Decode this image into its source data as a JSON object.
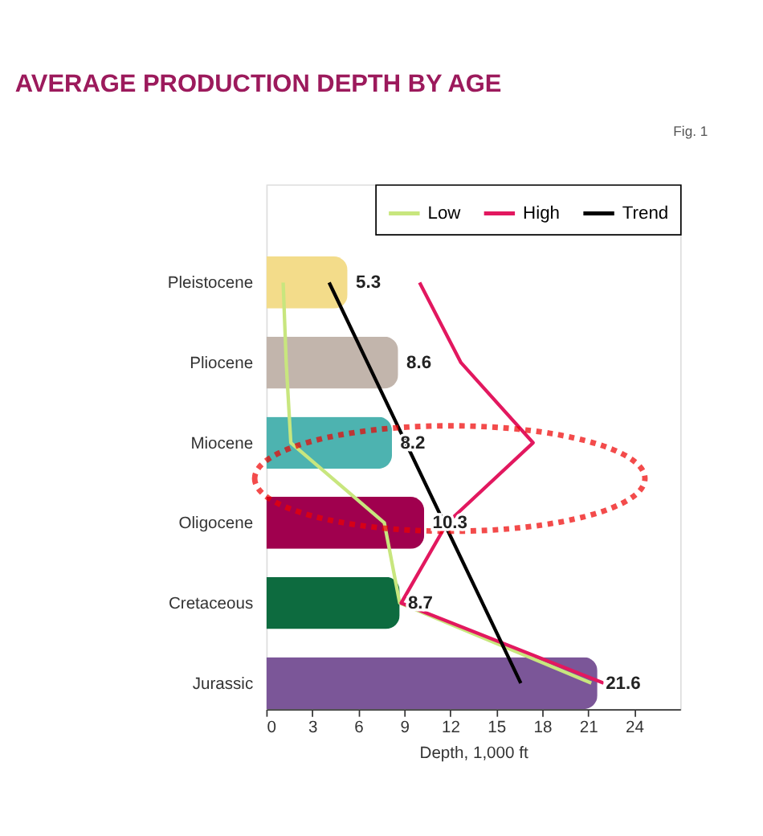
{
  "chart_data": {
    "type": "bar",
    "orientation": "horizontal",
    "title": "AVERAGE PRODUCTION DEPTH BY AGE",
    "xlabel": "Depth, 1,000 ft",
    "annotations": [
      "Fig. 1"
    ],
    "categories": [
      "Pleistocene",
      "Pliocene",
      "Miocene",
      "Oligocene",
      "Cretaceous",
      "Jurassic"
    ],
    "series": [
      {
        "values": [
          5.3,
          8.6,
          8.2,
          10.3,
          8.7,
          21.6
        ],
        "colors": [
          "#f3dc8a",
          "#c2b5ac",
          "#4db3b0",
          "#a0004e",
          "#0d6b3f",
          "#7b5698"
        ],
        "value_labels": [
          "5.3",
          "8.6",
          "8.2",
          "10.3",
          "8.7",
          "21.6"
        ]
      },
      {
        "type": "line",
        "name": "Low",
        "color": "#c8e67e",
        "values": [
          1.1,
          1.3,
          1.6,
          7.7,
          8.7,
          21.2
        ]
      },
      {
        "type": "line",
        "name": "High",
        "color": "#e2185f",
        "values": [
          10.0,
          12.7,
          17.4,
          11.8,
          8.8,
          22.0
        ]
      },
      {
        "type": "line",
        "name": "Trend",
        "color": "#000000",
        "values": [
          4.1,
          6.6,
          9.1,
          11.6,
          14.1,
          16.6
        ]
      }
    ],
    "xlim": [
      0,
      27
    ],
    "xticks": [
      0,
      3,
      6,
      9,
      12,
      15,
      18,
      21,
      24
    ],
    "grid": false,
    "legend": "top right"
  }
}
